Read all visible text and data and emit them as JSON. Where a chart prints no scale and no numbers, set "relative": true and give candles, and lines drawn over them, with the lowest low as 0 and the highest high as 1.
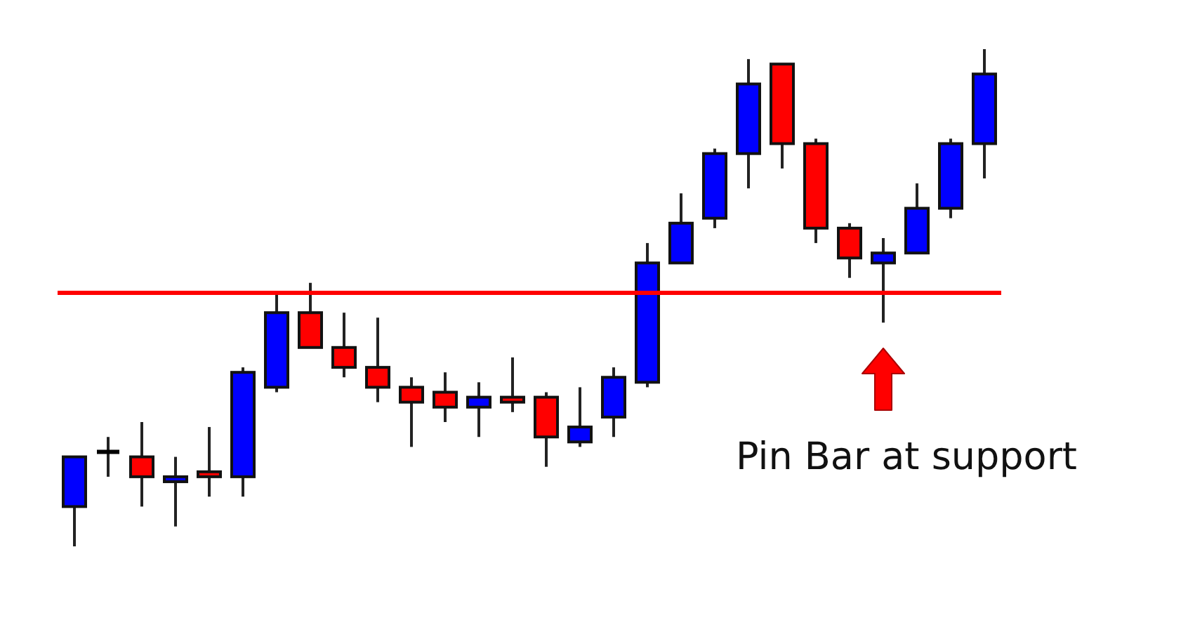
{
  "chart_data": {
    "type": "candlestick",
    "relative": true,
    "categories": [
      null,
      null,
      null,
      null,
      null,
      null,
      null,
      null,
      null,
      null,
      null,
      null,
      null,
      null,
      null,
      null,
      null,
      null,
      null,
      null,
      null,
      null,
      null,
      null,
      null,
      null,
      null,
      null
    ],
    "ohlc": [
      [
        0.08,
        0.18,
        0,
        0.18
      ],
      [
        0.19,
        0.22,
        0.14,
        0.19
      ],
      [
        0.18,
        0.25,
        0.08,
        0.14
      ],
      [
        0.13,
        0.18,
        0.04,
        0.14
      ],
      [
        0.15,
        0.24,
        0.1,
        0.14
      ],
      [
        0.14,
        0.36,
        0.1,
        0.35
      ],
      [
        0.32,
        0.51,
        0.31,
        0.47
      ],
      [
        0.47,
        0.53,
        0.4,
        0.4
      ],
      [
        0.4,
        0.47,
        0.34,
        0.36
      ],
      [
        0.36,
        0.46,
        0.29,
        0.32
      ],
      [
        0.32,
        0.34,
        0.2,
        0.29
      ],
      [
        0.31,
        0.35,
        0.25,
        0.28
      ],
      [
        0.28,
        0.33,
        0.22,
        0.3
      ],
      [
        0.3,
        0.38,
        0.27,
        0.29
      ],
      [
        0.3,
        0.31,
        0.16,
        0.22
      ],
      [
        0.21,
        0.32,
        0.2,
        0.24
      ],
      [
        0.26,
        0.36,
        0.22,
        0.34
      ],
      [
        0.33,
        0.61,
        0.32,
        0.57
      ],
      [
        0.57,
        0.71,
        0.57,
        0.65
      ],
      [
        0.66,
        0.8,
        0.64,
        0.79
      ],
      [
        0.79,
        0.98,
        0.72,
        0.93
      ],
      [
        0.97,
        0.97,
        0.76,
        0.81
      ],
      [
        0.81,
        0.82,
        0.61,
        0.64
      ],
      [
        0.64,
        0.65,
        0.54,
        0.58
      ],
      [
        0.57,
        0.62,
        0.45,
        0.59
      ],
      [
        0.59,
        0.73,
        0.59,
        0.68
      ],
      [
        0.68,
        0.82,
        0.66,
        0.81
      ],
      [
        0.81,
        1,
        0.74,
        0.95
      ]
    ],
    "colors": [
      "#0000ff",
      "#000000",
      "#ff0000",
      "#0000ff",
      "#ff0000",
      "#0000ff",
      "#0000ff",
      "#ff0000",
      "#ff0000",
      "#ff0000",
      "#ff0000",
      "#ff0000",
      "#0000ff",
      "#ff0000",
      "#ff0000",
      "#0000ff",
      "#0000ff",
      "#0000ff",
      "#0000ff",
      "#0000ff",
      "#0000ff",
      "#ff0000",
      "#ff0000",
      "#ff0000",
      "#0000ff",
      "#0000ff",
      "#0000ff",
      "#0000ff"
    ],
    "ref_lines": [
      {
        "axis": "y",
        "value": 0.51,
        "color": "#ff0000"
      }
    ],
    "annotations": [
      "Pin Bar at support"
    ]
  }
}
